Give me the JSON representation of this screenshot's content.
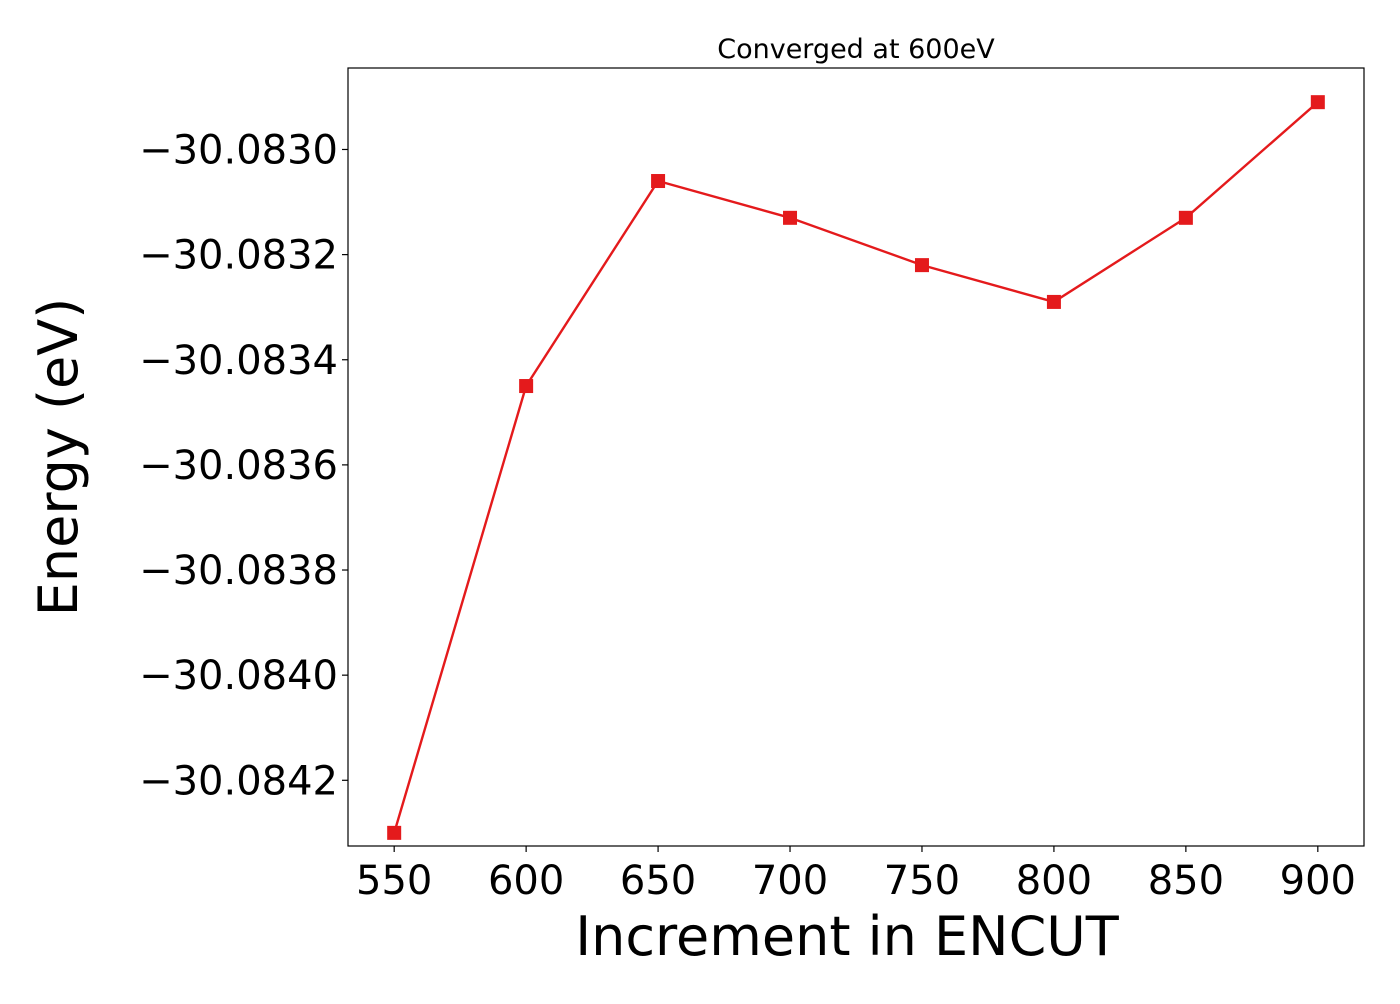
{
  "chart_data": {
    "type": "line",
    "title": "Converged at 600eV",
    "xlabel": "Increment in ENCUT",
    "ylabel": "Energy (eV)",
    "x": [
      550,
      600,
      650,
      700,
      750,
      800,
      850,
      900
    ],
    "series": [
      {
        "values": [
          -30.0843,
          -30.08345,
          -30.08306,
          -30.08313,
          -30.08322,
          -30.08329,
          -30.08313,
          -30.08291
        ],
        "color": "#e41a1c",
        "marker": "square"
      }
    ],
    "xticks": [
      550,
      600,
      650,
      700,
      750,
      800,
      850,
      900
    ],
    "xtick_labels": [
      "550",
      "600",
      "650",
      "700",
      "750",
      "800",
      "850",
      "900"
    ],
    "yticks": [
      -30.083,
      -30.0832,
      -30.0834,
      -30.0836,
      -30.0838,
      -30.084,
      -30.0842
    ],
    "ytick_labels": [
      "−30.0830",
      "−30.0832",
      "−30.0834",
      "−30.0836",
      "−30.0838",
      "−30.0840",
      "−30.0842"
    ],
    "xlim": [
      532.5,
      917.5
    ],
    "ylim": [
      -30.084325,
      -30.082845
    ],
    "grid": false,
    "legend": "none"
  }
}
